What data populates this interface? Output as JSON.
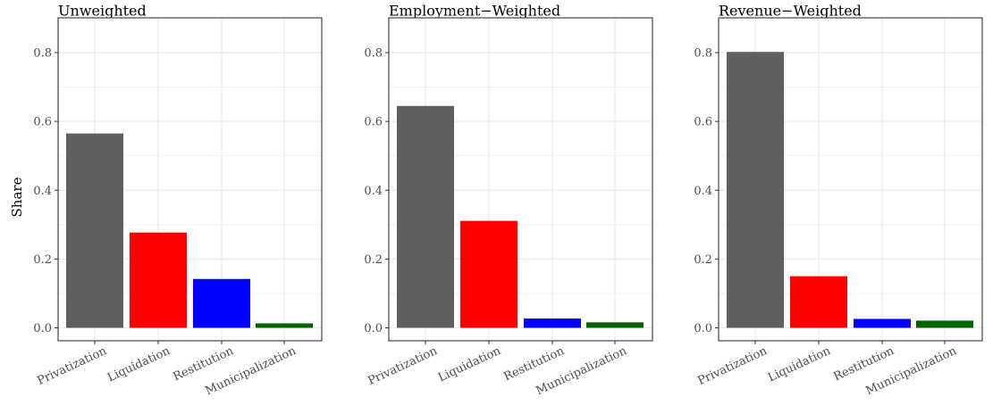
{
  "chart_data": {
    "type": "bar",
    "ylabel": "Share",
    "ylim": [
      0,
      0.85
    ],
    "y_ticks": [
      0.0,
      0.2,
      0.4,
      0.6,
      0.8
    ],
    "y_tick_labels": [
      "0.0",
      "0.2",
      "0.4",
      "0.6",
      "0.8"
    ],
    "grid": true,
    "categories": [
      "Privatization",
      "Liquidation",
      "Restitution",
      "Municipalization"
    ],
    "category_colors": [
      "#5f5f5f",
      "#ff0000",
      "#0000ff",
      "#006400"
    ],
    "panels": [
      {
        "title": "Unweighted",
        "values": [
          0.565,
          0.277,
          0.142,
          0.013
        ]
      },
      {
        "title": "Employment−Weighted",
        "values": [
          0.645,
          0.311,
          0.027,
          0.016
        ]
      },
      {
        "title": "Revenue−Weighted",
        "values": [
          0.802,
          0.15,
          0.026,
          0.021
        ]
      }
    ]
  }
}
